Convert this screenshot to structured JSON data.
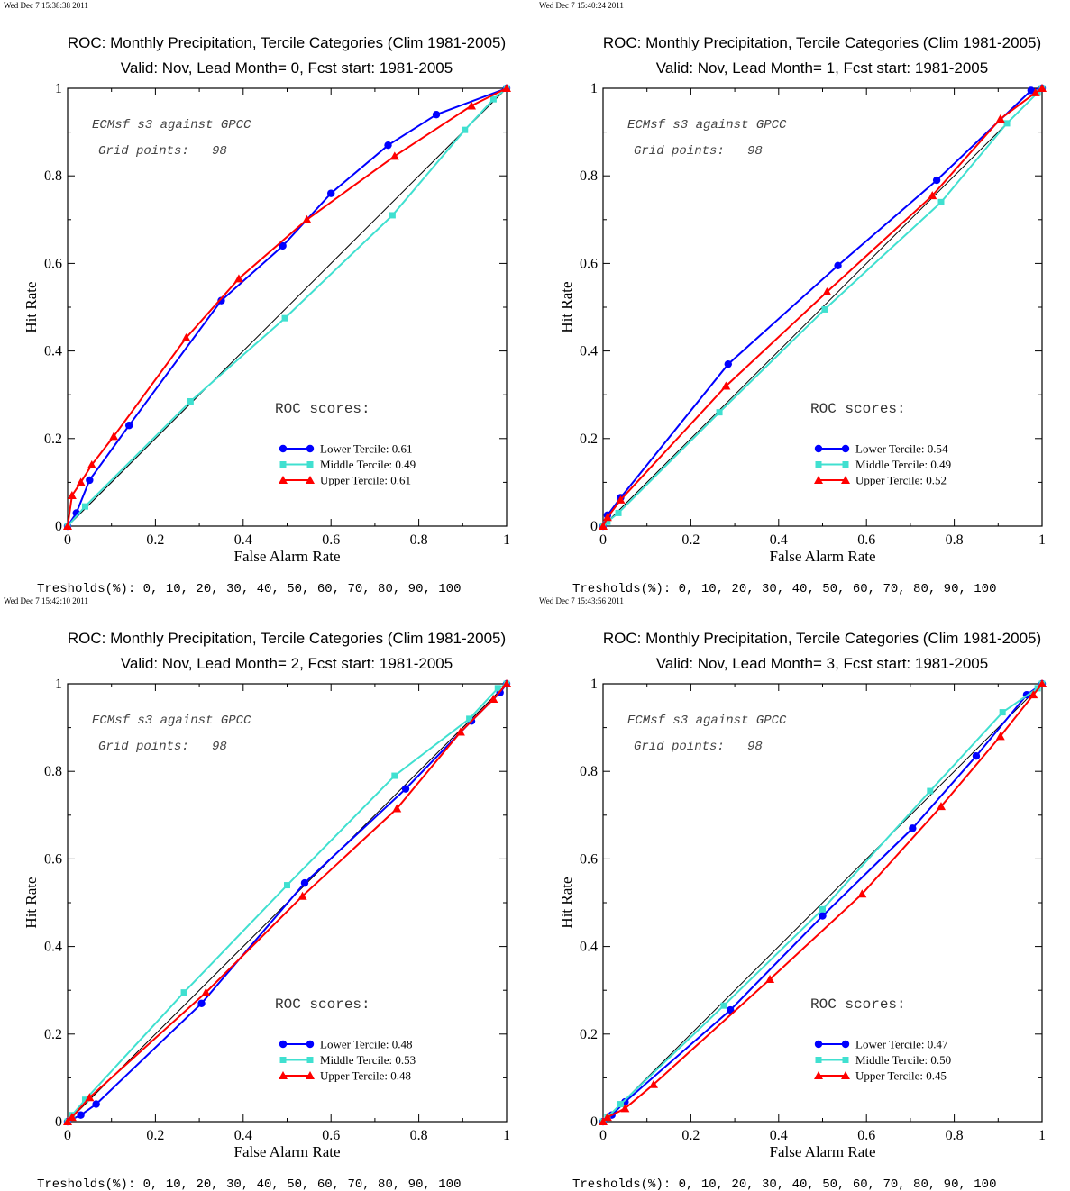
{
  "common": {
    "title_line1": "ROC: Monthly Precipitation, Tercile Categories (Clim 1981-2005)",
    "note_line1": "ECMsf s3 against GPCC",
    "note_line2": "Grid points:   98",
    "scores_heading": "ROC scores:",
    "xlabel": "False Alarm Rate",
    "ylabel": "Hit Rate",
    "thresholds_text": "Tresholds(%): 0, 10, 20, 30, 40, 50, 60, 70, 80, 90, 100",
    "xticks": [
      "0",
      "0.2",
      "0.4",
      "0.6",
      "0.8",
      "1"
    ],
    "yticks": [
      "0",
      "0.2",
      "0.4",
      "0.6",
      "0.8",
      "1"
    ]
  },
  "colors": {
    "lower": "#0000ff",
    "middle": "#40e0d0",
    "upper": "#ff0000",
    "diagonal": "#000000"
  },
  "chart_data": [
    {
      "type": "line",
      "timestamp": "Wed Dec  7 15:38:38 2011",
      "title": "Valid: Nov, Lead Month= 0, Fcst start: 1981-2005",
      "xlabel": "False Alarm Rate",
      "ylabel": "Hit Rate",
      "xlim": [
        0,
        1
      ],
      "ylim": [
        0,
        1
      ],
      "series": [
        {
          "name": "Lower Tercile: 0.61",
          "key": "lower",
          "marker": "circle",
          "x": [
            1.0,
            0.84,
            0.73,
            0.6,
            0.49,
            0.35,
            0.14,
            0.05,
            0.02,
            0.0
          ],
          "y": [
            1.0,
            0.94,
            0.87,
            0.76,
            0.64,
            0.515,
            0.23,
            0.105,
            0.03,
            0.0
          ]
        },
        {
          "name": "Middle Tercile: 0.49",
          "key": "middle",
          "marker": "square",
          "x": [
            1.0,
            0.97,
            0.905,
            0.74,
            0.495,
            0.28,
            0.04,
            0.0
          ],
          "y": [
            1.0,
            0.975,
            0.905,
            0.71,
            0.475,
            0.285,
            0.045,
            0.0
          ]
        },
        {
          "name": "Upper Tercile: 0.61",
          "key": "upper",
          "marker": "triangle",
          "x": [
            1.0,
            0.92,
            0.745,
            0.545,
            0.39,
            0.27,
            0.105,
            0.055,
            0.03,
            0.01,
            0.0
          ],
          "y": [
            1.0,
            0.96,
            0.845,
            0.7,
            0.565,
            0.43,
            0.205,
            0.14,
            0.1,
            0.07,
            0.0
          ]
        }
      ]
    },
    {
      "type": "line",
      "timestamp": "Wed Dec  7 15:40:24 2011",
      "title": "Valid: Nov, Lead Month= 1, Fcst start: 1981-2005",
      "xlabel": "False Alarm Rate",
      "ylabel": "Hit Rate",
      "xlim": [
        0,
        1
      ],
      "ylim": [
        0,
        1
      ],
      "series": [
        {
          "name": "Lower Tercile: 0.54",
          "key": "lower",
          "marker": "circle",
          "x": [
            1.0,
            0.975,
            0.76,
            0.535,
            0.285,
            0.04,
            0.01,
            0.0
          ],
          "y": [
            1.0,
            0.995,
            0.79,
            0.595,
            0.37,
            0.065,
            0.025,
            0.0
          ]
        },
        {
          "name": "Middle Tercile: 0.49",
          "key": "middle",
          "marker": "square",
          "x": [
            1.0,
            0.99,
            0.92,
            0.77,
            0.505,
            0.265,
            0.035,
            0.01,
            0.0
          ],
          "y": [
            1.0,
            0.99,
            0.92,
            0.74,
            0.495,
            0.26,
            0.03,
            0.01,
            0.0
          ]
        },
        {
          "name": "Upper Tercile: 0.52",
          "key": "upper",
          "marker": "triangle",
          "x": [
            1.0,
            0.985,
            0.905,
            0.75,
            0.51,
            0.28,
            0.04,
            0.01,
            0.0
          ],
          "y": [
            1.0,
            0.99,
            0.93,
            0.755,
            0.535,
            0.32,
            0.06,
            0.02,
            0.0
          ]
        }
      ]
    },
    {
      "type": "line",
      "timestamp": "Wed Dec  7 15:42:10 2011",
      "title": "Valid: Nov, Lead Month= 2, Fcst start: 1981-2005",
      "xlabel": "False Alarm Rate",
      "ylabel": "Hit Rate",
      "xlim": [
        0,
        1
      ],
      "ylim": [
        0,
        1
      ],
      "series": [
        {
          "name": "Lower Tercile: 0.48",
          "key": "lower",
          "marker": "circle",
          "x": [
            1.0,
            0.985,
            0.92,
            0.77,
            0.54,
            0.305,
            0.065,
            0.03,
            0.0
          ],
          "y": [
            1.0,
            0.98,
            0.915,
            0.76,
            0.545,
            0.27,
            0.04,
            0.015,
            0.0
          ]
        },
        {
          "name": "Middle Tercile: 0.53",
          "key": "middle",
          "marker": "square",
          "x": [
            1.0,
            0.98,
            0.915,
            0.745,
            0.5,
            0.265,
            0.04,
            0.01,
            0.0
          ],
          "y": [
            1.0,
            0.99,
            0.92,
            0.79,
            0.54,
            0.295,
            0.05,
            0.015,
            0.0
          ]
        },
        {
          "name": "Upper Tercile: 0.48",
          "key": "upper",
          "marker": "triangle",
          "x": [
            1.0,
            0.97,
            0.895,
            0.75,
            0.535,
            0.315,
            0.05,
            0.01,
            0.0
          ],
          "y": [
            1.0,
            0.965,
            0.89,
            0.715,
            0.515,
            0.295,
            0.055,
            0.01,
            0.0
          ]
        }
      ]
    },
    {
      "type": "line",
      "timestamp": "Wed Dec  7 15:43:56 2011",
      "title": "Valid: Nov, Lead Month= 3, Fcst start: 1981-2005",
      "xlabel": "False Alarm Rate",
      "ylabel": "Hit Rate",
      "xlim": [
        0,
        1
      ],
      "ylim": [
        0,
        1
      ],
      "series": [
        {
          "name": "Lower Tercile: 0.47",
          "key": "lower",
          "marker": "circle",
          "x": [
            1.0,
            0.965,
            0.85,
            0.705,
            0.5,
            0.29,
            0.05,
            0.02,
            0.0
          ],
          "y": [
            1.0,
            0.975,
            0.835,
            0.67,
            0.47,
            0.255,
            0.045,
            0.015,
            0.0
          ]
        },
        {
          "name": "Middle Tercile: 0.50",
          "key": "middle",
          "marker": "square",
          "x": [
            1.0,
            0.99,
            0.91,
            0.745,
            0.5,
            0.275,
            0.04,
            0.01,
            0.0
          ],
          "y": [
            1.0,
            0.99,
            0.935,
            0.755,
            0.485,
            0.265,
            0.04,
            0.01,
            0.0
          ]
        },
        {
          "name": "Upper Tercile: 0.45",
          "key": "upper",
          "marker": "triangle",
          "x": [
            1.0,
            0.98,
            0.905,
            0.77,
            0.59,
            0.38,
            0.115,
            0.05,
            0.01,
            0.0
          ],
          "y": [
            1.0,
            0.975,
            0.88,
            0.72,
            0.52,
            0.325,
            0.085,
            0.03,
            0.01,
            0.0
          ]
        }
      ]
    }
  ]
}
